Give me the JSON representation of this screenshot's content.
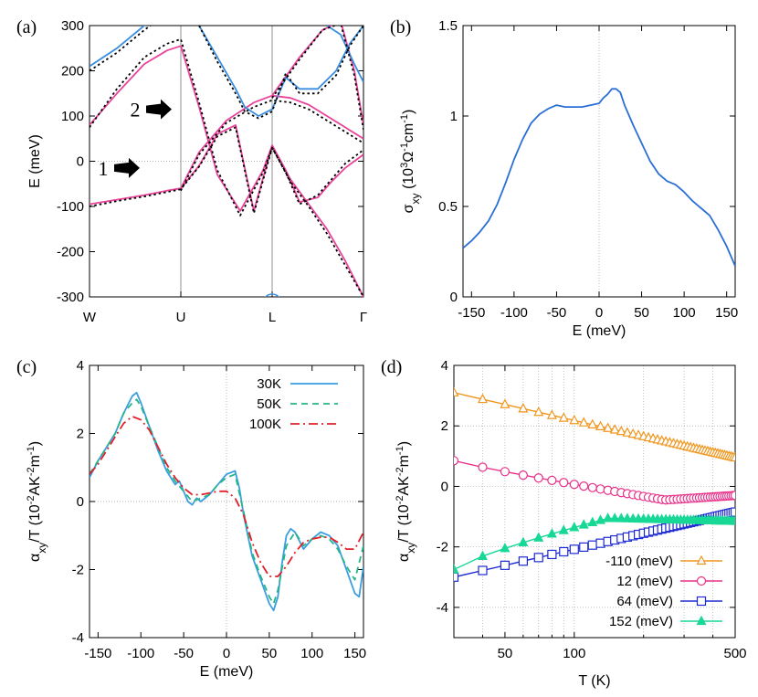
{
  "chart_data": [
    {
      "id": "a",
      "panel_label": "(a)",
      "type": "line",
      "ylabel": "E (meV)",
      "ylim": [
        -300,
        300
      ],
      "yticks": [
        -300,
        -200,
        -100,
        0,
        100,
        200,
        300
      ],
      "xtick_labels": [
        "W",
        "U",
        "L",
        "Γ"
      ],
      "xtick_positions": [
        0,
        1,
        2,
        3
      ],
      "xlim": [
        0,
        3
      ],
      "annotations": [
        {
          "text": "1",
          "x": 0.05,
          "y": -15
        },
        {
          "text": "2",
          "x": 0.4,
          "y": 115
        }
      ],
      "series": [
        {
          "name": "pink-band-1",
          "color": "#e8449a",
          "style": "solid",
          "x": [
            0,
            0.3,
            0.6,
            0.85,
            1.0,
            1.2,
            1.4,
            1.6,
            1.8,
            2.0,
            2.15,
            2.3,
            2.5,
            2.65,
            2.8,
            3.0
          ],
          "y": [
            -95,
            -85,
            -75,
            -65,
            -60,
            -10,
            60,
            80,
            -110,
            35,
            -20,
            -90,
            -80,
            -45,
            -15,
            15
          ]
        },
        {
          "name": "pink-band-2",
          "color": "#e8449a",
          "style": "solid",
          "x": [
            0,
            0.3,
            0.6,
            0.85,
            1.0,
            1.2,
            1.4,
            1.65,
            1.9,
            2.0,
            2.2,
            2.4,
            2.6,
            2.8,
            3.0
          ],
          "y": [
            80,
            150,
            215,
            245,
            255,
            120,
            -30,
            -110,
            -20,
            35,
            -40,
            -95,
            -150,
            -220,
            -300
          ]
        },
        {
          "name": "pink-band-3",
          "color": "#e8449a",
          "style": "solid",
          "x": [
            1.0,
            1.2,
            1.5,
            1.8,
            2.0,
            2.2,
            2.4,
            2.6,
            2.8,
            3.0
          ],
          "y": [
            -60,
            20,
            90,
            130,
            145,
            140,
            125,
            100,
            75,
            50
          ]
        },
        {
          "name": "pink-band-4",
          "color": "#e8449a",
          "style": "solid",
          "x": [
            2.0,
            2.3,
            2.55,
            2.75,
            2.9,
            3.0
          ],
          "y": [
            145,
            230,
            290,
            310,
            200,
            80
          ]
        },
        {
          "name": "blue-band-1",
          "color": "#3a8ee0",
          "style": "solid",
          "x": [
            0,
            0.3,
            0.6,
            0.8
          ],
          "y": [
            210,
            250,
            300,
            330
          ]
        },
        {
          "name": "blue-band-2",
          "color": "#3a8ee0",
          "style": "solid",
          "x": [
            1.2,
            1.4,
            1.6,
            1.7,
            1.85,
            2.0,
            2.15,
            2.3,
            2.5,
            2.7,
            2.85,
            3.0
          ],
          "y": [
            300,
            230,
            160,
            120,
            100,
            115,
            185,
            160,
            160,
            200,
            260,
            300
          ]
        },
        {
          "name": "blue-band-3",
          "color": "#3a8ee0",
          "style": "solid",
          "x": [
            2.6,
            2.75,
            2.9,
            3.0
          ],
          "y": [
            300,
            280,
            215,
            175
          ]
        },
        {
          "name": "dft-1",
          "color": "#000000",
          "style": "dotted",
          "x": [
            0,
            0.3,
            0.6,
            0.85,
            1.0,
            1.2,
            1.4,
            1.6,
            1.8,
            2.0,
            2.15,
            2.3,
            2.5,
            2.65,
            2.8,
            3.0
          ],
          "y": [
            -100,
            -88,
            -78,
            -68,
            -62,
            -12,
            55,
            75,
            -115,
            30,
            -25,
            -95,
            -75,
            -40,
            -5,
            25
          ]
        },
        {
          "name": "dft-2",
          "color": "#000000",
          "style": "dotted",
          "x": [
            0,
            0.3,
            0.6,
            0.85,
            1.0,
            1.2,
            1.4,
            1.65,
            1.9,
            2.0,
            2.2,
            2.4,
            2.6,
            2.8,
            3.0
          ],
          "y": [
            75,
            160,
            230,
            260,
            270,
            130,
            -20,
            -120,
            -25,
            30,
            -45,
            -100,
            -160,
            -230,
            -300
          ]
        },
        {
          "name": "dft-3",
          "color": "#000000",
          "style": "dotted",
          "x": [
            1.0,
            1.2,
            1.5,
            1.8,
            2.0,
            2.2,
            2.4,
            2.6,
            2.8,
            3.0
          ],
          "y": [
            -65,
            15,
            85,
            120,
            135,
            130,
            115,
            90,
            65,
            40
          ]
        },
        {
          "name": "dft-4",
          "color": "#000000",
          "style": "dotted",
          "x": [
            0,
            0.3,
            0.6,
            0.8
          ],
          "y": [
            200,
            240,
            290,
            320
          ]
        },
        {
          "name": "dft-5",
          "color": "#000000",
          "style": "dotted",
          "x": [
            1.2,
            1.4,
            1.6,
            1.7,
            1.85,
            2.0,
            2.15,
            2.3,
            2.5,
            2.7,
            2.85,
            3.0
          ],
          "y": [
            300,
            220,
            150,
            110,
            95,
            110,
            195,
            150,
            150,
            190,
            255,
            300
          ]
        },
        {
          "name": "dft-6",
          "color": "#000000",
          "style": "dotted",
          "x": [
            2.0,
            2.3,
            2.55,
            2.75,
            2.9,
            3.0
          ],
          "y": [
            140,
            225,
            290,
            305,
            190,
            70
          ]
        }
      ]
    },
    {
      "id": "b",
      "panel_label": "(b)",
      "type": "line",
      "xlabel": "E (meV)",
      "ylabel": "σxy (10³Ω⁻¹cm⁻¹)",
      "ylabel_parts": {
        "sigma": "σ",
        "sub": "xy",
        "open": " (10",
        "sup1": "3",
        "omega": "Ω",
        "sup2": "-1",
        "cm": "cm",
        "sup3": "-1",
        "close": ")"
      },
      "xlim": [
        -160,
        160
      ],
      "ylim": [
        0,
        1.5
      ],
      "xticks": [
        -150,
        -100,
        -50,
        0,
        50,
        100,
        150
      ],
      "yticks": [
        0,
        0.5,
        1,
        1.5
      ],
      "ytick_labels": [
        "0",
        "0.5",
        "1",
        "1.5"
      ],
      "series": [
        {
          "name": "sigma",
          "color": "#2a6fd6",
          "style": "solid",
          "x": [
            -160,
            -150,
            -140,
            -130,
            -120,
            -110,
            -100,
            -90,
            -80,
            -70,
            -60,
            -50,
            -40,
            -30,
            -20,
            -10,
            0,
            5,
            10,
            15,
            20,
            25,
            30,
            40,
            50,
            60,
            70,
            80,
            90,
            100,
            110,
            120,
            130,
            140,
            150,
            160
          ],
          "y": [
            0.27,
            0.31,
            0.36,
            0.42,
            0.51,
            0.63,
            0.76,
            0.87,
            0.96,
            1.01,
            1.04,
            1.06,
            1.05,
            1.05,
            1.05,
            1.06,
            1.07,
            1.1,
            1.12,
            1.15,
            1.15,
            1.13,
            1.06,
            0.95,
            0.85,
            0.75,
            0.68,
            0.64,
            0.62,
            0.58,
            0.53,
            0.49,
            0.45,
            0.37,
            0.28,
            0.17
          ]
        }
      ]
    },
    {
      "id": "c",
      "panel_label": "(c)",
      "type": "line",
      "xlabel": "E (meV)",
      "ylabel": "αxy/T (10⁻²AK⁻²m⁻¹)",
      "ylabel_parts": {
        "alpha": "α",
        "sub": "xy",
        "rest": "/T (10",
        "sup1": "-2",
        "mid": "AK",
        "sup2": "-2",
        "m": "m",
        "sup3": "-1",
        "close": ")"
      },
      "xlim": [
        -160,
        160
      ],
      "ylim": [
        -4,
        4
      ],
      "xticks": [
        -150,
        -100,
        -50,
        0,
        50,
        100,
        150
      ],
      "yticks": [
        -4,
        -2,
        0,
        2,
        4
      ],
      "legend": [
        "30K",
        "50K",
        "100K"
      ],
      "series": [
        {
          "name": "30K",
          "color": "#3a9ee0",
          "style": "solid",
          "x": [
            -160,
            -150,
            -140,
            -130,
            -120,
            -110,
            -105,
            -100,
            -90,
            -80,
            -70,
            -60,
            -55,
            -50,
            -45,
            -40,
            -35,
            -30,
            -20,
            -10,
            0,
            10,
            15,
            20,
            25,
            30,
            40,
            50,
            55,
            60,
            65,
            70,
            75,
            80,
            90,
            100,
            110,
            120,
            130,
            140,
            150,
            155,
            160
          ],
          "y": [
            0.7,
            1.2,
            1.6,
            2.0,
            2.6,
            3.1,
            3.2,
            2.9,
            2.2,
            1.5,
            0.9,
            0.5,
            0.6,
            0.3,
            0.0,
            -0.1,
            0.1,
            0.0,
            0.2,
            0.5,
            0.8,
            0.9,
            0.4,
            -0.4,
            -1.0,
            -1.6,
            -2.3,
            -3.0,
            -3.2,
            -2.8,
            -1.8,
            -1.0,
            -0.8,
            -0.9,
            -1.4,
            -1.1,
            -0.9,
            -1.0,
            -1.3,
            -2.0,
            -2.7,
            -2.8,
            -1.9
          ]
        },
        {
          "name": "50K",
          "color": "#25b58a",
          "style": "dashed",
          "x": [
            -160,
            -150,
            -140,
            -130,
            -120,
            -110,
            -105,
            -100,
            -90,
            -80,
            -70,
            -60,
            -50,
            -40,
            -30,
            -20,
            -10,
            0,
            10,
            20,
            30,
            40,
            50,
            55,
            60,
            70,
            80,
            90,
            100,
            110,
            120,
            130,
            140,
            150,
            160
          ],
          "y": [
            0.8,
            1.2,
            1.6,
            2.0,
            2.6,
            2.9,
            3.0,
            2.8,
            2.2,
            1.6,
            1.0,
            0.6,
            0.3,
            0.0,
            0.1,
            0.2,
            0.5,
            0.7,
            0.8,
            -0.3,
            -1.5,
            -2.2,
            -2.8,
            -3.0,
            -2.6,
            -1.3,
            -0.9,
            -1.3,
            -1.1,
            -1.0,
            -1.1,
            -1.4,
            -1.9,
            -2.3,
            -1.3
          ]
        },
        {
          "name": "100K",
          "color": "#e0202a",
          "style": "dashdot",
          "x": [
            -160,
            -150,
            -140,
            -130,
            -120,
            -110,
            -100,
            -90,
            -80,
            -70,
            -60,
            -50,
            -40,
            -30,
            -20,
            -10,
            0,
            10,
            20,
            30,
            40,
            50,
            60,
            70,
            80,
            90,
            100,
            110,
            120,
            130,
            140,
            150,
            160
          ],
          "y": [
            0.8,
            1.1,
            1.5,
            1.9,
            2.3,
            2.5,
            2.4,
            2.1,
            1.6,
            1.1,
            0.7,
            0.4,
            0.2,
            0.2,
            0.25,
            0.3,
            0.3,
            0.1,
            -0.4,
            -1.2,
            -1.8,
            -2.2,
            -2.2,
            -1.9,
            -1.5,
            -1.2,
            -1.1,
            -1.05,
            -1.05,
            -1.2,
            -1.4,
            -1.4,
            -0.9
          ]
        }
      ]
    },
    {
      "id": "d",
      "panel_label": "(d)",
      "type": "line",
      "xlabel": "T (K)",
      "ylabel": "αxy/T (10⁻²AK⁻²m⁻¹)",
      "ylabel_parts": {
        "alpha": "α",
        "sub": "xy",
        "rest": "/T (10",
        "sup1": "-2",
        "mid": "AK",
        "sup2": "-2",
        "m": "m",
        "sup3": "-1",
        "close": ")"
      },
      "xscale": "log",
      "xlim": [
        30,
        500
      ],
      "ylim": [
        -5,
        4
      ],
      "xticks": [
        50,
        100,
        500
      ],
      "yticks": [
        -4,
        -2,
        0,
        2,
        4
      ],
      "legend": [
        "-110 (meV)",
        "12 (meV)",
        "64 (meV)",
        "152 (meV)"
      ],
      "series": [
        {
          "name": "-110 (meV)",
          "color": "#f0961e",
          "marker": "triangle-open",
          "a": 3.1,
          "b": 0.95,
          "shape": "linear"
        },
        {
          "name": "12 (meV)",
          "color": "#e8308a",
          "marker": "circle-open",
          "a": 0.85,
          "b": -0.3,
          "shape": "dip",
          "min": -0.45
        },
        {
          "name": "64 (meV)",
          "color": "#1e2ad2",
          "marker": "square-open",
          "a": -3.0,
          "b": -0.85,
          "shape": "linear"
        },
        {
          "name": "152 (meV)",
          "color": "#18d896",
          "marker": "triangle-filled",
          "a": -2.75,
          "b": -1.15,
          "shape": "hump",
          "max": -1.05
        }
      ]
    }
  ]
}
